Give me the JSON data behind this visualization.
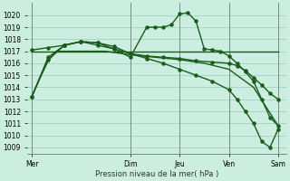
{
  "background_color": "#cceee0",
  "grid_color": "#99ccbb",
  "line_color": "#1a5c1a",
  "xlabel_text": "Pression niveau de la mer( hPa )",
  "ylim": [
    1008.5,
    1021.0
  ],
  "yticks": [
    1009,
    1010,
    1011,
    1012,
    1013,
    1014,
    1015,
    1016,
    1017,
    1018,
    1019,
    1020
  ],
  "x_day_labels": [
    "Mer",
    "",
    "Dim",
    "Jeu",
    "",
    "Ven",
    "",
    "Sam"
  ],
  "x_tick_labels": [
    "Mer",
    "Dim",
    "Jeu",
    "Ven",
    "Sam"
  ],
  "x_tick_positions": [
    0,
    12,
    18,
    24,
    30
  ],
  "xlim": [
    -0.5,
    31
  ],
  "series": [
    {
      "x": [
        0,
        3,
        6,
        9,
        12,
        15,
        18,
        21,
        24,
        27,
        30
      ],
      "y": [
        1017.0,
        1017.0,
        1017.0,
        1017.0,
        1017.0,
        1017.0,
        1017.0,
        1017.0,
        1017.0,
        1017.0,
        1017.0
      ],
      "marker": null,
      "linewidth": 1.0
    },
    {
      "x": [
        0,
        1,
        2,
        3,
        6,
        9,
        12,
        15,
        18,
        21,
        24,
        27,
        30
      ],
      "y": [
        1013.2,
        1014.8,
        1016.2,
        1017.0,
        1017.0,
        1017.0,
        1016.7,
        1016.5,
        1016.3,
        1016.0,
        1015.5,
        1014.0,
        1010.8
      ],
      "marker": null,
      "linewidth": 1.0
    },
    {
      "x": [
        0,
        2,
        4,
        6,
        8,
        10,
        12,
        14,
        15,
        16,
        17,
        18,
        19,
        20,
        21,
        22,
        23,
        24,
        25,
        26,
        27,
        28,
        29,
        30
      ],
      "y": [
        1013.2,
        1016.3,
        1017.5,
        1017.8,
        1017.7,
        1017.2,
        1016.5,
        1019.0,
        1019.0,
        1019.0,
        1019.2,
        1020.1,
        1020.2,
        1019.5,
        1017.2,
        1017.1,
        1017.0,
        1016.6,
        1016.0,
        1015.3,
        1014.5,
        1013.0,
        1011.5,
        1010.8
      ],
      "marker": "o",
      "markersize": 2.2,
      "linewidth": 1.0
    },
    {
      "x": [
        0,
        2,
        4,
        6,
        8,
        10,
        12,
        14,
        16,
        18,
        20,
        22,
        24,
        25,
        26,
        27,
        28,
        29,
        30
      ],
      "y": [
        1013.2,
        1016.5,
        1017.5,
        1017.8,
        1017.5,
        1017.2,
        1016.8,
        1016.4,
        1016.0,
        1015.5,
        1015.0,
        1014.5,
        1013.8,
        1013.0,
        1012.0,
        1011.0,
        1009.5,
        1009.0,
        1010.5
      ],
      "marker": "o",
      "markersize": 2.2,
      "linewidth": 1.0
    },
    {
      "x": [
        0,
        2,
        4,
        6,
        8,
        10,
        12,
        14,
        16,
        18,
        20,
        22,
        24,
        25,
        26,
        27,
        28,
        29,
        30
      ],
      "y": [
        1017.1,
        1017.3,
        1017.5,
        1017.8,
        1017.7,
        1017.4,
        1016.8,
        1016.6,
        1016.5,
        1016.4,
        1016.2,
        1016.1,
        1016.0,
        1015.8,
        1015.4,
        1014.8,
        1014.2,
        1013.5,
        1013.0
      ],
      "marker": "o",
      "markersize": 2.2,
      "linewidth": 1.0
    }
  ],
  "vline_positions": [
    0,
    12,
    18,
    24,
    30
  ],
  "vline_color": "#607060",
  "vline_lw": 0.5
}
